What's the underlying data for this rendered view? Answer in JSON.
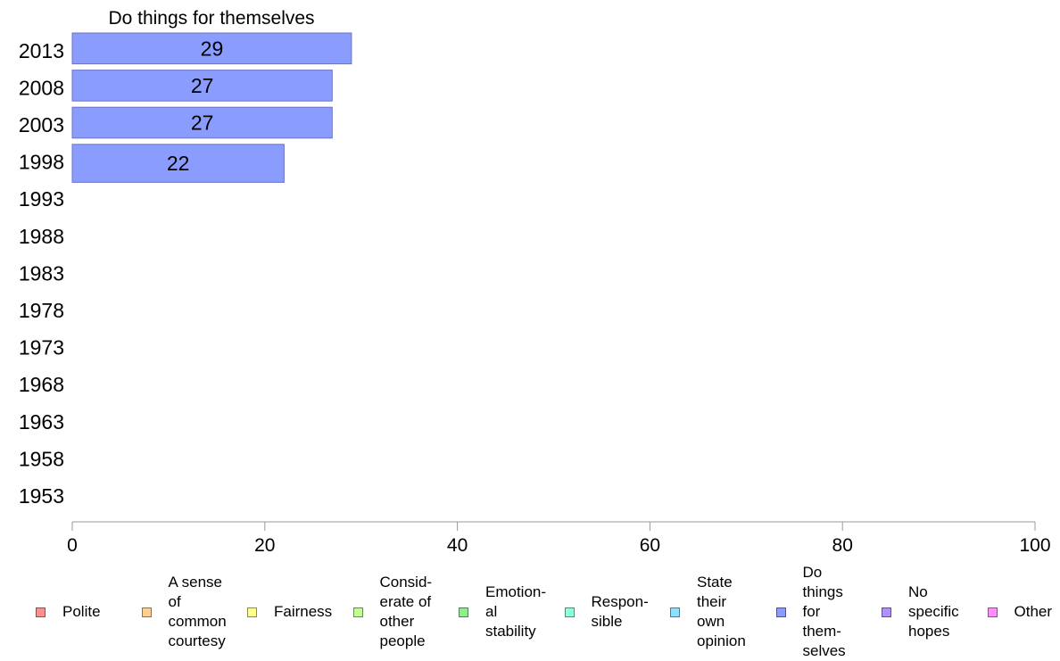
{
  "chart_data": {
    "type": "bar",
    "orientation": "horizontal",
    "title": "Do things for themselves",
    "categories": [
      "2013",
      "2008",
      "2003",
      "1998",
      "1993",
      "1988",
      "1983",
      "1978",
      "1973",
      "1968",
      "1963",
      "1958",
      "1953"
    ],
    "series": [
      {
        "name": "Do things for themselves",
        "values": [
          29,
          27,
          27,
          22,
          null,
          null,
          null,
          null,
          null,
          null,
          null,
          null,
          null
        ]
      }
    ],
    "xlim": [
      0,
      100
    ],
    "xticks": [
      0,
      20,
      40,
      60,
      80,
      100
    ],
    "grid": false,
    "legend_position": "bottom",
    "bar_color": "#8b9cff"
  },
  "legend": [
    {
      "label": "Polite",
      "color": "#ff8f8f"
    },
    {
      "label": "A sense\nof\ncommon\ncourtesy",
      "color": "#ffcf8f"
    },
    {
      "label": "Fairness",
      "color": "#ffff8f"
    },
    {
      "label": "Consid-\nerate of\nother\npeople",
      "color": "#bfff8f"
    },
    {
      "label": "Emotion-\nal\nstability",
      "color": "#8fef8f"
    },
    {
      "label": "Respon-\nsible",
      "color": "#8fffdf"
    },
    {
      "label": "State\ntheir\nown\nopinion",
      "color": "#8fdfff"
    },
    {
      "label": "Do\nthings\nfor\nthem-\nselves",
      "color": "#8b9cff"
    },
    {
      "label": "No\nspecific\nhopes",
      "color": "#b08fff"
    },
    {
      "label": "Other",
      "color": "#ff8fff"
    }
  ]
}
